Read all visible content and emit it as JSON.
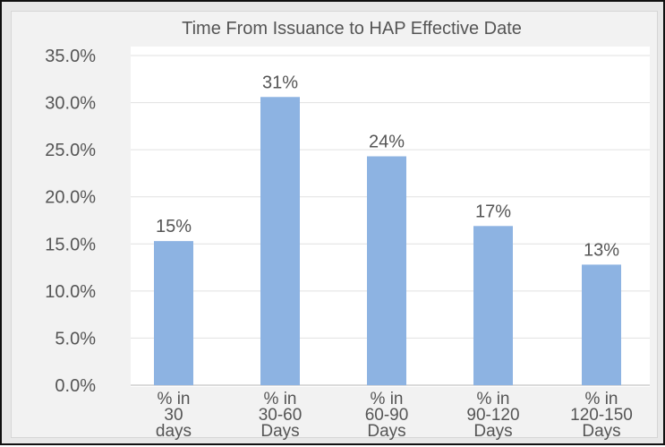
{
  "chart_data": {
    "type": "bar",
    "title": "Time From Issuance to HAP Effective Date",
    "categories": [
      [
        "% in",
        "30",
        "days"
      ],
      [
        "% in",
        "30-60",
        "Days"
      ],
      [
        "% in",
        "60-90",
        "Days"
      ],
      [
        "% in",
        "90-120",
        "Days"
      ],
      [
        "% in",
        "120-150",
        "Days"
      ]
    ],
    "values": [
      15.3,
      30.6,
      24.3,
      16.9,
      12.8
    ],
    "data_labels": [
      "15%",
      "31%",
      "24%",
      "17%",
      "13%"
    ],
    "yticks": [
      "0.0%",
      "5.0%",
      "10.0%",
      "15.0%",
      "20.0%",
      "25.0%",
      "30.0%",
      "35.0%"
    ],
    "ylim": [
      0,
      35
    ],
    "grid": true,
    "bar_color": "#8db3e2"
  }
}
